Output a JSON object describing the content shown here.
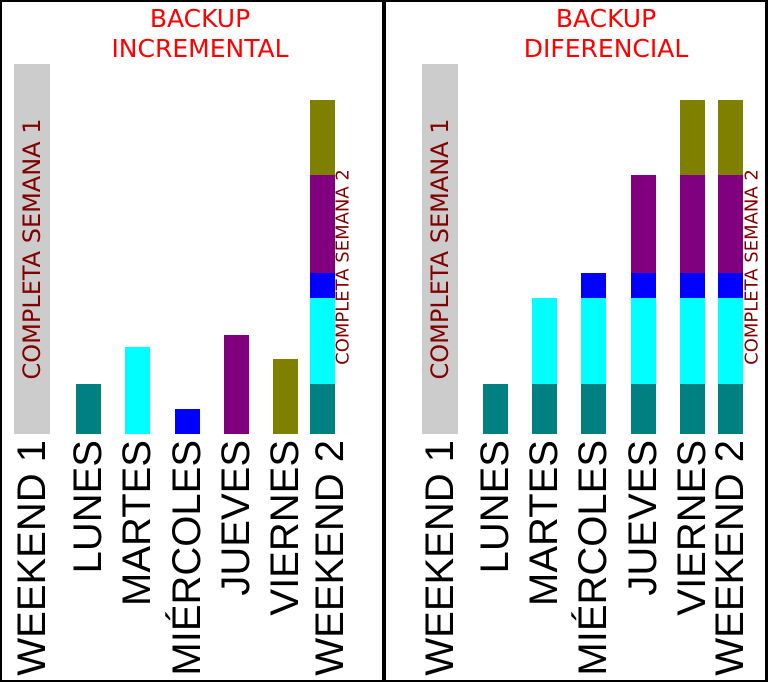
{
  "panels": [
    {
      "title": [
        "BACKUP",
        "INCREMENTAL"
      ],
      "full_label_start": "COMPLETA SEMANA 1",
      "full_label_end": "COMPLETA SEMANA 2",
      "days": [
        "WEEKEND 1",
        "LUNES",
        "MARTES",
        "MIÉRCOLES",
        "JUEVES",
        "VIERNES",
        "WEEKEND 2"
      ]
    },
    {
      "title": [
        "BACKUP",
        "DIFERENCIAL"
      ],
      "full_label_start": "COMPLETA SEMANA 1",
      "full_label_end": "COMPLETA SEMANA 2",
      "days": [
        "WEEKEND 1",
        "LUNES",
        "MARTES",
        "MIÉRCOLES",
        "JUEVES",
        "VIERNES",
        "WEEKEND 2"
      ]
    }
  ]
}
